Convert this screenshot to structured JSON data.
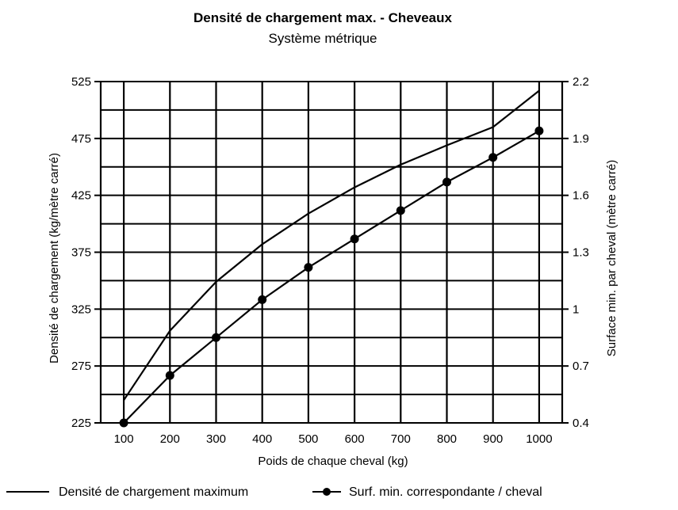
{
  "chart_data": {
    "type": "line",
    "title": "Densité de chargement max. - Cheveaux",
    "subtitle": "Système métrique",
    "xlabel": "Poids de chaque cheval (kg)",
    "ylabel_left": "Densité de chargement (kg/mètre carré)",
    "ylabel_right": "Surface min. par cheval (mètre carré)",
    "x_ticks": [
      "100",
      "200",
      "300",
      "400",
      "500",
      "600",
      "700",
      "800",
      "900",
      "1000"
    ],
    "y_left_ticks": [
      "225",
      "275",
      "325",
      "375",
      "425",
      "475",
      "525"
    ],
    "y_right_ticks": [
      "0.4",
      "0.7",
      "1",
      "1.3",
      "1.6",
      "1.9",
      "2.2"
    ],
    "xlim": [
      50,
      1050
    ],
    "ylim_left": [
      225,
      525
    ],
    "ylim_right": [
      0.4,
      2.2
    ],
    "grid": true,
    "legend_position": "bottom",
    "x": [
      100,
      200,
      300,
      400,
      500,
      600,
      700,
      800,
      900,
      1000
    ],
    "series": [
      {
        "name": "Densité de chargement maximum",
        "axis": "left",
        "marker": "none",
        "values": [
          245,
          306,
          349,
          382,
          409,
          432,
          452,
          469,
          485,
          517
        ]
      },
      {
        "name": "Surf. min. correspondante / cheval",
        "axis": "right",
        "marker": "circle",
        "values": [
          0.4,
          0.65,
          0.85,
          1.05,
          1.22,
          1.37,
          1.52,
          1.67,
          1.8,
          1.94
        ]
      }
    ],
    "colors": {
      "line": "#000000",
      "grid": "#000000",
      "background": "#ffffff"
    }
  }
}
